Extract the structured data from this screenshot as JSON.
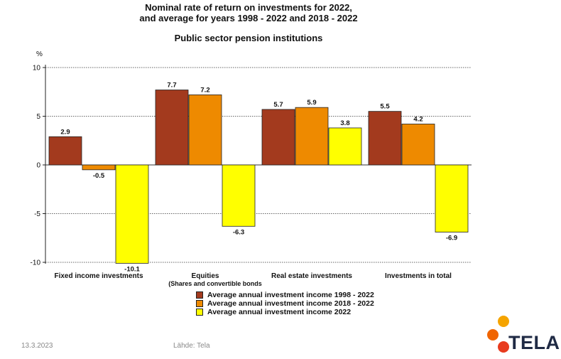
{
  "header": {
    "title_line1": "Nominal rate of return on investments for  2022,",
    "title_line2": "and average for years 1998 - 2022 and 2018 - 2022",
    "subtitle": "Public sector pension institutions"
  },
  "footer": {
    "date": "13.3.2023",
    "source": "Lähde: Tela"
  },
  "logo": {
    "text": "TELA",
    "accent_color": "#f08a00"
  },
  "chart_data": {
    "type": "bar",
    "ylabel": "%",
    "ylim": [
      -10,
      10
    ],
    "yticks": [
      10,
      5,
      0,
      -5,
      -10
    ],
    "grid": true,
    "legend_position": "bottom",
    "categories": [
      "Fixed income investments",
      "Equities",
      "Real estate investments",
      "Investments  in total"
    ],
    "category_sublabels": [
      "",
      "(Shares  and  convertible bonds",
      "",
      ""
    ],
    "series": [
      {
        "name": "Average annual investment income 1998 - 2022",
        "color": "#a33a1e",
        "values": [
          2.9,
          7.7,
          5.7,
          5.5
        ]
      },
      {
        "name": "Average annual investment income 2018 - 2022",
        "color": "#ee8a00",
        "values": [
          -0.5,
          7.2,
          5.9,
          4.2
        ]
      },
      {
        "name": "Average annual investment income 2022",
        "color": "#ffff00",
        "values": [
          -10.1,
          -6.3,
          3.8,
          -6.9
        ]
      }
    ]
  }
}
